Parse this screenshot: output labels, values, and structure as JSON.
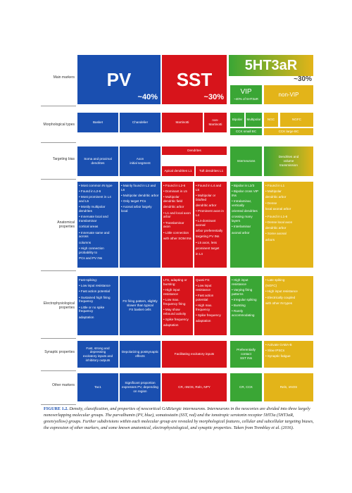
{
  "row_labels": [
    "Main markers",
    "Morphological types",
    "Targeting bias",
    "Anatomical properties",
    "Electrophysiological properties",
    "Synaptic properties",
    "Other markers"
  ],
  "headers": {
    "pv": {
      "name": "PV",
      "share": "~40%"
    },
    "sst": {
      "name": "SST",
      "share": "~30%"
    },
    "htr": {
      "name": "5HT3aR",
      "share": "~30%"
    },
    "vip": {
      "name": "VIP",
      "share": "~40% of 5HT3aR"
    },
    "nonvip": {
      "name": "non-VIP"
    }
  },
  "cells": [
    {
      "lines": [
        "Basket"
      ]
    },
    {
      "lines": [
        "Chandelier"
      ]
    },
    {
      "lines": [
        "Martinotti"
      ]
    },
    {
      "lines": [
        "non-",
        "Martinotti"
      ]
    },
    {
      "lines": [
        "Bipolar"
      ]
    },
    {
      "lines": [
        "Multipolar"
      ]
    },
    {
      "lines": [
        "NGC"
      ]
    },
    {
      "lines": [
        "NGFC"
      ]
    },
    {
      "lines": [
        "CCK small BC"
      ]
    },
    {
      "lines": [
        "CCK large BC"
      ]
    },
    {
      "lines": [
        "Soma and proximal",
        "dendrites"
      ]
    },
    {
      "lines": [
        "Axon",
        "initial segment"
      ]
    },
    {
      "lines": [
        "Dendrites"
      ]
    },
    {
      "lines": [
        "Apical dendrites L1"
      ]
    },
    {
      "lines": [
        "Tuft dendrites L1"
      ]
    },
    {
      "lines": [
        "Interneurons"
      ]
    },
    {
      "lines": [
        "Dendrites and",
        "volume",
        "transmission"
      ]
    },
    {
      "lines": [
        "• Most common IN type",
        "• Found in L2-6",
        "• Most prominent in L4 and L5",
        "• Mostly multipolar dendrites",
        "• Innervate local and translaminar",
        "  cortical areas",
        "• Innervate same and across",
        "  columns",
        "• High connection probability to",
        "  PCs and PV INs"
      ]
    },
    {
      "lines": [
        "• Mainly found in L2 and L6",
        "• Multipolar dendritic arbor",
        "• Only target PCs",
        "• Axonal arbor largely local"
      ]
    },
    {
      "lines": [
        "• Found in L2-6",
        "• Dominant in L5",
        "• Multipolar dendritic field",
        "  dendritic arbor",
        "• L1 and local axon arbor",
        "• Translaminar axon",
        "• Little connection",
        "  with other SOM INs"
      ]
    },
    {
      "lines": [
        "• Found in L4 and L5",
        "• Multipolar or bitufted",
        "  dendritic arbor",
        "• Prominent axon in L4",
        "• L4-dominant axonal",
        "  arbor preferentially",
        "  targeting PV INs",
        "• L5 axon, less",
        "  prominent target",
        "  in L4"
      ]
    },
    {
      "lines": [
        "• Bipolar in L2/3",
        "• Bipolar cross VIP INs",
        "• Intralaminar, vertically",
        "  oriented dendrites",
        "  crossing many layers",
        "• Interlaminar",
        "  axonal arbor"
      ]
    },
    {
      "lines": [
        "• Found in L1",
        "• Multipolar",
        "  dendritic arbor",
        "• Dense",
        "  local axonal arbor",
        "",
        "• Found in L1-6",
        "• Dense local axon",
        "  dendritic arbor",
        "• Some axonal",
        "  arbors"
      ]
    },
    {
      "lines": [
        "Fast-spiking:",
        "• Low input resistance",
        "• Fast action potential",
        "• Sustained high firing frequency",
        "• Little or no spike frequency",
        "  adaptation"
      ]
    },
    {
      "lines": [
        "FS firing pattern, slightly",
        "slower than typical",
        "FS basket cells"
      ]
    },
    {
      "lines": [
        "LTS, adapting or bursting:",
        "• High input resistance",
        "• Low max. frequency firing",
        "• May show rebound activity",
        "• Spike frequency",
        "  adaptation"
      ]
    },
    {
      "lines": [
        "Quasi FS:",
        "• Low input resistance",
        "• Fast action potential",
        "• High max. frequency",
        "• Spike frequency",
        "  adaptation"
      ]
    },
    {
      "lines": [
        "• High input resistance",
        "• Varying firing patterns",
        "• Irregular spiking",
        "• Bursting",
        "• Rarely accommodating"
      ]
    },
    {
      "lines": [
        "• Late spiking",
        "  (NGFC)",
        "• High input resistance",
        "• Electrically coupled",
        "  with other IN types"
      ]
    },
    {
      "lines": [
        "Fast, strong and depressing",
        "excitatory inputs and inhibitory outputs"
      ]
    },
    {
      "lines": [
        "Depolarizing postsynaptic",
        "effects"
      ]
    },
    {
      "lines": [
        "Facilitating excitatory inputs"
      ]
    },
    {
      "lines": [
        "Preferentially contact",
        "SST INs"
      ]
    },
    {
      "lines": [
        "• Activate GABA-B",
        "• Slow IPSCs",
        "• Synaptic fatigue"
      ]
    },
    {
      "lines": [
        "Tac1"
      ]
    },
    {
      "lines": [
        "Significant proportion",
        "expresses PV, depending",
        "on region"
      ]
    },
    {
      "lines": [
        "CR, nNOS, Reln, NPY"
      ]
    },
    {
      "lines": [
        "CR, CCK"
      ]
    },
    {
      "lines": [
        "Reln, nNOS"
      ]
    }
  ],
  "caption": {
    "label": "FIGURE 1.2.",
    "text": "Density, classification, and properties of neocortical GABAergic interneurons. Interneurons in the neocortex are divided into three largely nonoverlapping molecular groups. The parvalbumin (PV, blue), somatostatin (SST, red) and the ionotropic serotonin receptor 5HT3a (5HT3aR, green/yellow) groups. Further subdivisions within each molecular group are revealed by morphological features, cellular and subcellular targeting biases, the expression of other markers, and some known anatomical, electrophysiological, and synaptic properties. Taken from Tremblay et al. (2016)."
  }
}
